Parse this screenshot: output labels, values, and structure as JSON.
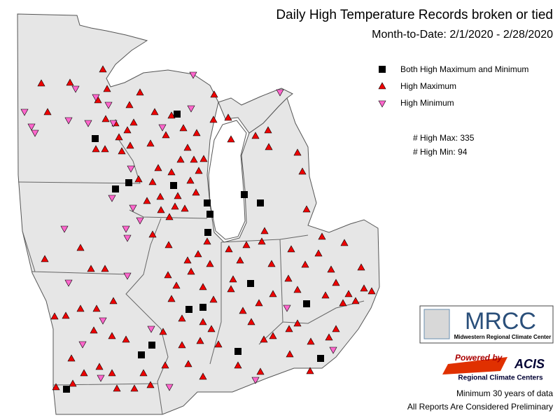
{
  "header": {
    "title": "Daily High Temperature Records broken or tied",
    "subtitle": "Month-to-Date:  2/1/2020 - 2/28/2020"
  },
  "legend": {
    "items": [
      "Both High Maximum and Minimum",
      "High Maximum",
      "High Minimum"
    ]
  },
  "counts": [
    "# High Max: 335",
    "# High Min: 94"
  ],
  "logos": {
    "mrcc": "MRCC",
    "mrcc_name": "Midwestern Regional Climate Center",
    "powered": "Powered by",
    "acis": "ACIS",
    "acis_name": "Regional Climate Centers"
  },
  "notes": [
    "Minimum 30 years of data",
    "All Reports Are Considered Preliminary"
  ]
}
